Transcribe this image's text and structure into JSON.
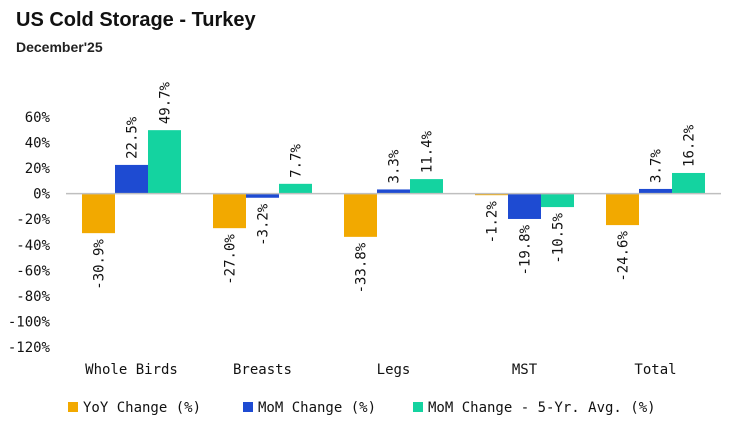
{
  "header": {
    "title": "US Cold Storage - Turkey",
    "subtitle": "December'25"
  },
  "chart_data": {
    "type": "bar",
    "categories": [
      "Whole Birds",
      "Breasts",
      "Legs",
      "MST",
      "Total"
    ],
    "series": [
      {
        "name": "YoY Change (%)",
        "color": "#F2A900",
        "values": [
          -30.9,
          -27.0,
          -33.8,
          -1.2,
          -24.6
        ],
        "labels": [
          "-30.9%",
          "-27.0%",
          "-33.8%",
          "-1.2%",
          "-24.6%"
        ]
      },
      {
        "name": "MoM Change (%)",
        "color": "#1E4BD2",
        "values": [
          22.5,
          -3.2,
          3.3,
          -19.8,
          3.7
        ],
        "labels": [
          "22.5%",
          "-3.2%",
          "3.3%",
          "-19.8%",
          "3.7%"
        ]
      },
      {
        "name": "MoM Change - 5-Yr. Avg. (%)",
        "color": "#14D3A0",
        "values": [
          49.7,
          7.7,
          11.4,
          -10.5,
          16.2
        ],
        "labels": [
          "49.7%",
          "7.7%",
          "11.4%",
          "-10.5%",
          "16.2%"
        ]
      }
    ],
    "yticks": [
      "60%",
      "40%",
      "20%",
      "0%",
      "-20%",
      "-40%",
      "-60%",
      "-80%",
      "-100%",
      "-120%"
    ],
    "ytick_values": [
      60,
      40,
      20,
      0,
      -20,
      -40,
      -60,
      -80,
      -100,
      -120
    ],
    "ylim": [
      -120,
      60
    ],
    "legend_position": "bottom"
  }
}
